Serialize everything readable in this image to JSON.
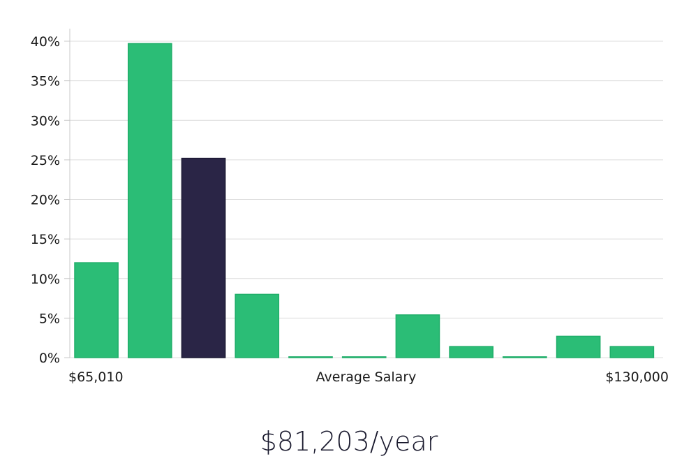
{
  "chart_data": {
    "type": "bar",
    "title": "",
    "xlabel": "Average Salary",
    "ylabel": "",
    "x_min_label": "$65,010",
    "x_max_label": "$130,000",
    "ylim": [
      0,
      40
    ],
    "y_ticks": [
      0,
      5,
      10,
      15,
      20,
      25,
      30,
      35,
      40
    ],
    "y_tick_labels": [
      "0%",
      "5%",
      "10%",
      "15%",
      "20%",
      "25%",
      "30%",
      "35%",
      "40%"
    ],
    "grid": true,
    "values": [
      12,
      39.7,
      25.2,
      8,
      0.1,
      0.1,
      5.4,
      1.4,
      0.1,
      2.7,
      1.4
    ],
    "highlighted_index": 2,
    "colors": {
      "bar": "#2bbd76",
      "bar_border": "#1fae69",
      "highlight": "#2a2546",
      "grid": "#dcdcdc",
      "axis": "#c8c8c8"
    }
  },
  "headline": "$81,203/year"
}
